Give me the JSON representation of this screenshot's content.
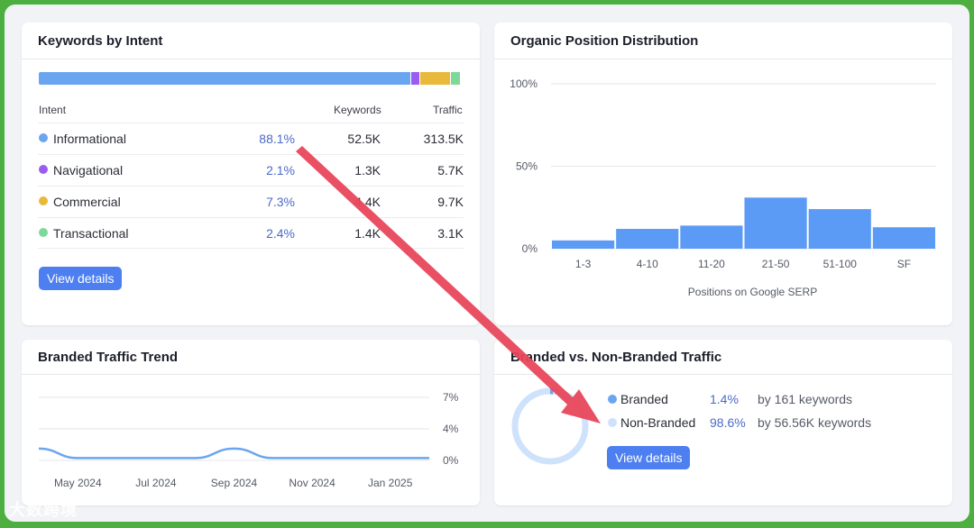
{
  "intent": {
    "title": "Keywords by Intent",
    "headers": {
      "intent": "Intent",
      "keywords": "Keywords",
      "traffic": "Traffic"
    },
    "rows": [
      {
        "name": "Informational",
        "pct": "88.1%",
        "keywords": "52.5K",
        "traffic": "313.5K",
        "color": "#6aa6f0",
        "share": 88.1
      },
      {
        "name": "Navigational",
        "pct": "2.1%",
        "keywords": "1.3K",
        "traffic": "5.7K",
        "color": "#9b5cf0",
        "share": 2.1
      },
      {
        "name": "Commercial",
        "pct": "7.3%",
        "keywords": "4.4K",
        "traffic": "9.7K",
        "color": "#e8b93a",
        "share": 7.3
      },
      {
        "name": "Transactional",
        "pct": "2.4%",
        "keywords": "1.4K",
        "traffic": "3.1K",
        "color": "#7dd89a",
        "share": 2.4
      }
    ],
    "button": "View details"
  },
  "distribution": {
    "title": "Organic Position Distribution",
    "chart_data": {
      "type": "bar",
      "categories": [
        "1-3",
        "4-10",
        "11-20",
        "21-50",
        "51-100",
        "SF"
      ],
      "values": [
        5,
        12,
        14,
        31,
        24,
        13
      ],
      "xlabel": "Positions on Google SERP",
      "ylabel": "",
      "ylim": [
        0,
        100
      ],
      "yticks": [
        "100%",
        "50%",
        "0%"
      ],
      "ytick_values": [
        100,
        50,
        0
      ],
      "color": "#5b9bf5"
    }
  },
  "trend": {
    "title": "Branded Traffic Trend",
    "chart_data": {
      "type": "line",
      "x": [
        "Apr 2024",
        "May 2024",
        "Jun 2024",
        "Jul 2024",
        "Aug 2024",
        "Sep 2024",
        "Oct 2024",
        "Nov 2024",
        "Dec 2024",
        "Jan 2025",
        "Feb 2025"
      ],
      "values": [
        1.5,
        0.3,
        0.3,
        0.3,
        0.3,
        1.5,
        0.3,
        0.3,
        0.3,
        0.3,
        0.3
      ],
      "xticks": [
        "May 2024",
        "Jul 2024",
        "Sep 2024",
        "Nov 2024",
        "Jan 2025"
      ],
      "yticks": [
        "7%",
        "4%",
        "0%"
      ],
      "ytick_values": [
        7,
        4,
        0
      ],
      "ylim": [
        0,
        7
      ],
      "color": "#6aa6f0"
    }
  },
  "branded": {
    "title": "Branded vs. Non-Branded Traffic",
    "items": [
      {
        "label": "Branded",
        "pct": "1.4%",
        "detail": "by 161 keywords",
        "color": "#6aa6f0",
        "share": 1.4
      },
      {
        "label": "Non-Branded",
        "pct": "98.6%",
        "detail": "by 56.56K keywords",
        "color": "#cfe2fb",
        "share": 98.6
      }
    ],
    "button": "View details"
  },
  "watermark": "大数跨境",
  "annotation_color": "#e8475b"
}
